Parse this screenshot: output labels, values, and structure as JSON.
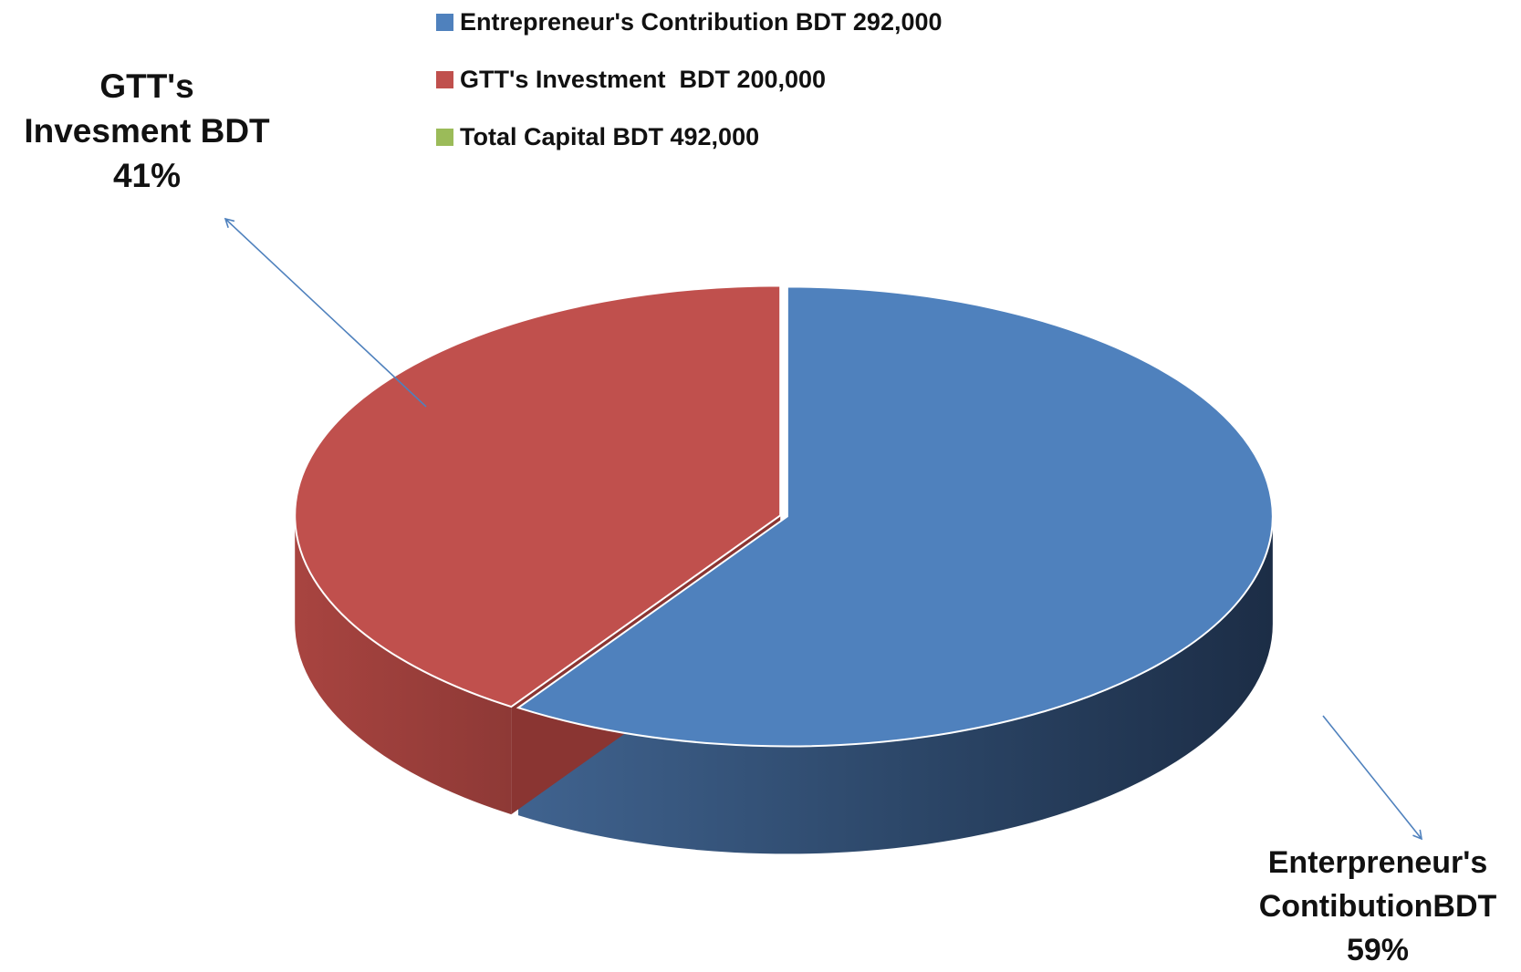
{
  "chart_data": {
    "type": "pie",
    "style": "3d",
    "title": "",
    "slices": [
      {
        "label": "Entrepreneur's Contribution BDT 292,000",
        "value": 292000,
        "percent": 59,
        "color": "#4f81bd"
      },
      {
        "label": "GTT's Investment  BDT 200,000",
        "value": 200000,
        "percent": 41,
        "color": "#c0504d"
      },
      {
        "label": "Total Capital BDT 492,000",
        "value": 0,
        "percent": 0,
        "color": "#9bbb59"
      }
    ],
    "legend": {
      "placement": "top",
      "items": [
        {
          "label": "Entrepreneur's Contribution BDT 292,000",
          "color": "#4f81bd"
        },
        {
          "label": "GTT's Investment  BDT 200,000",
          "color": "#c0504d"
        },
        {
          "label": "Total Capital BDT 492,000",
          "color": "#9bbb59"
        }
      ]
    },
    "annotations": [
      {
        "target": "GTT's Investment",
        "lines": [
          "GTT's",
          "Invesment BDT",
          "41%"
        ]
      },
      {
        "target": "Entrepreneur's Contribution",
        "lines": [
          "Enterpreneur's",
          "ContibutionBDT",
          "59%"
        ]
      }
    ],
    "arrow_color": "#4f81bd"
  }
}
